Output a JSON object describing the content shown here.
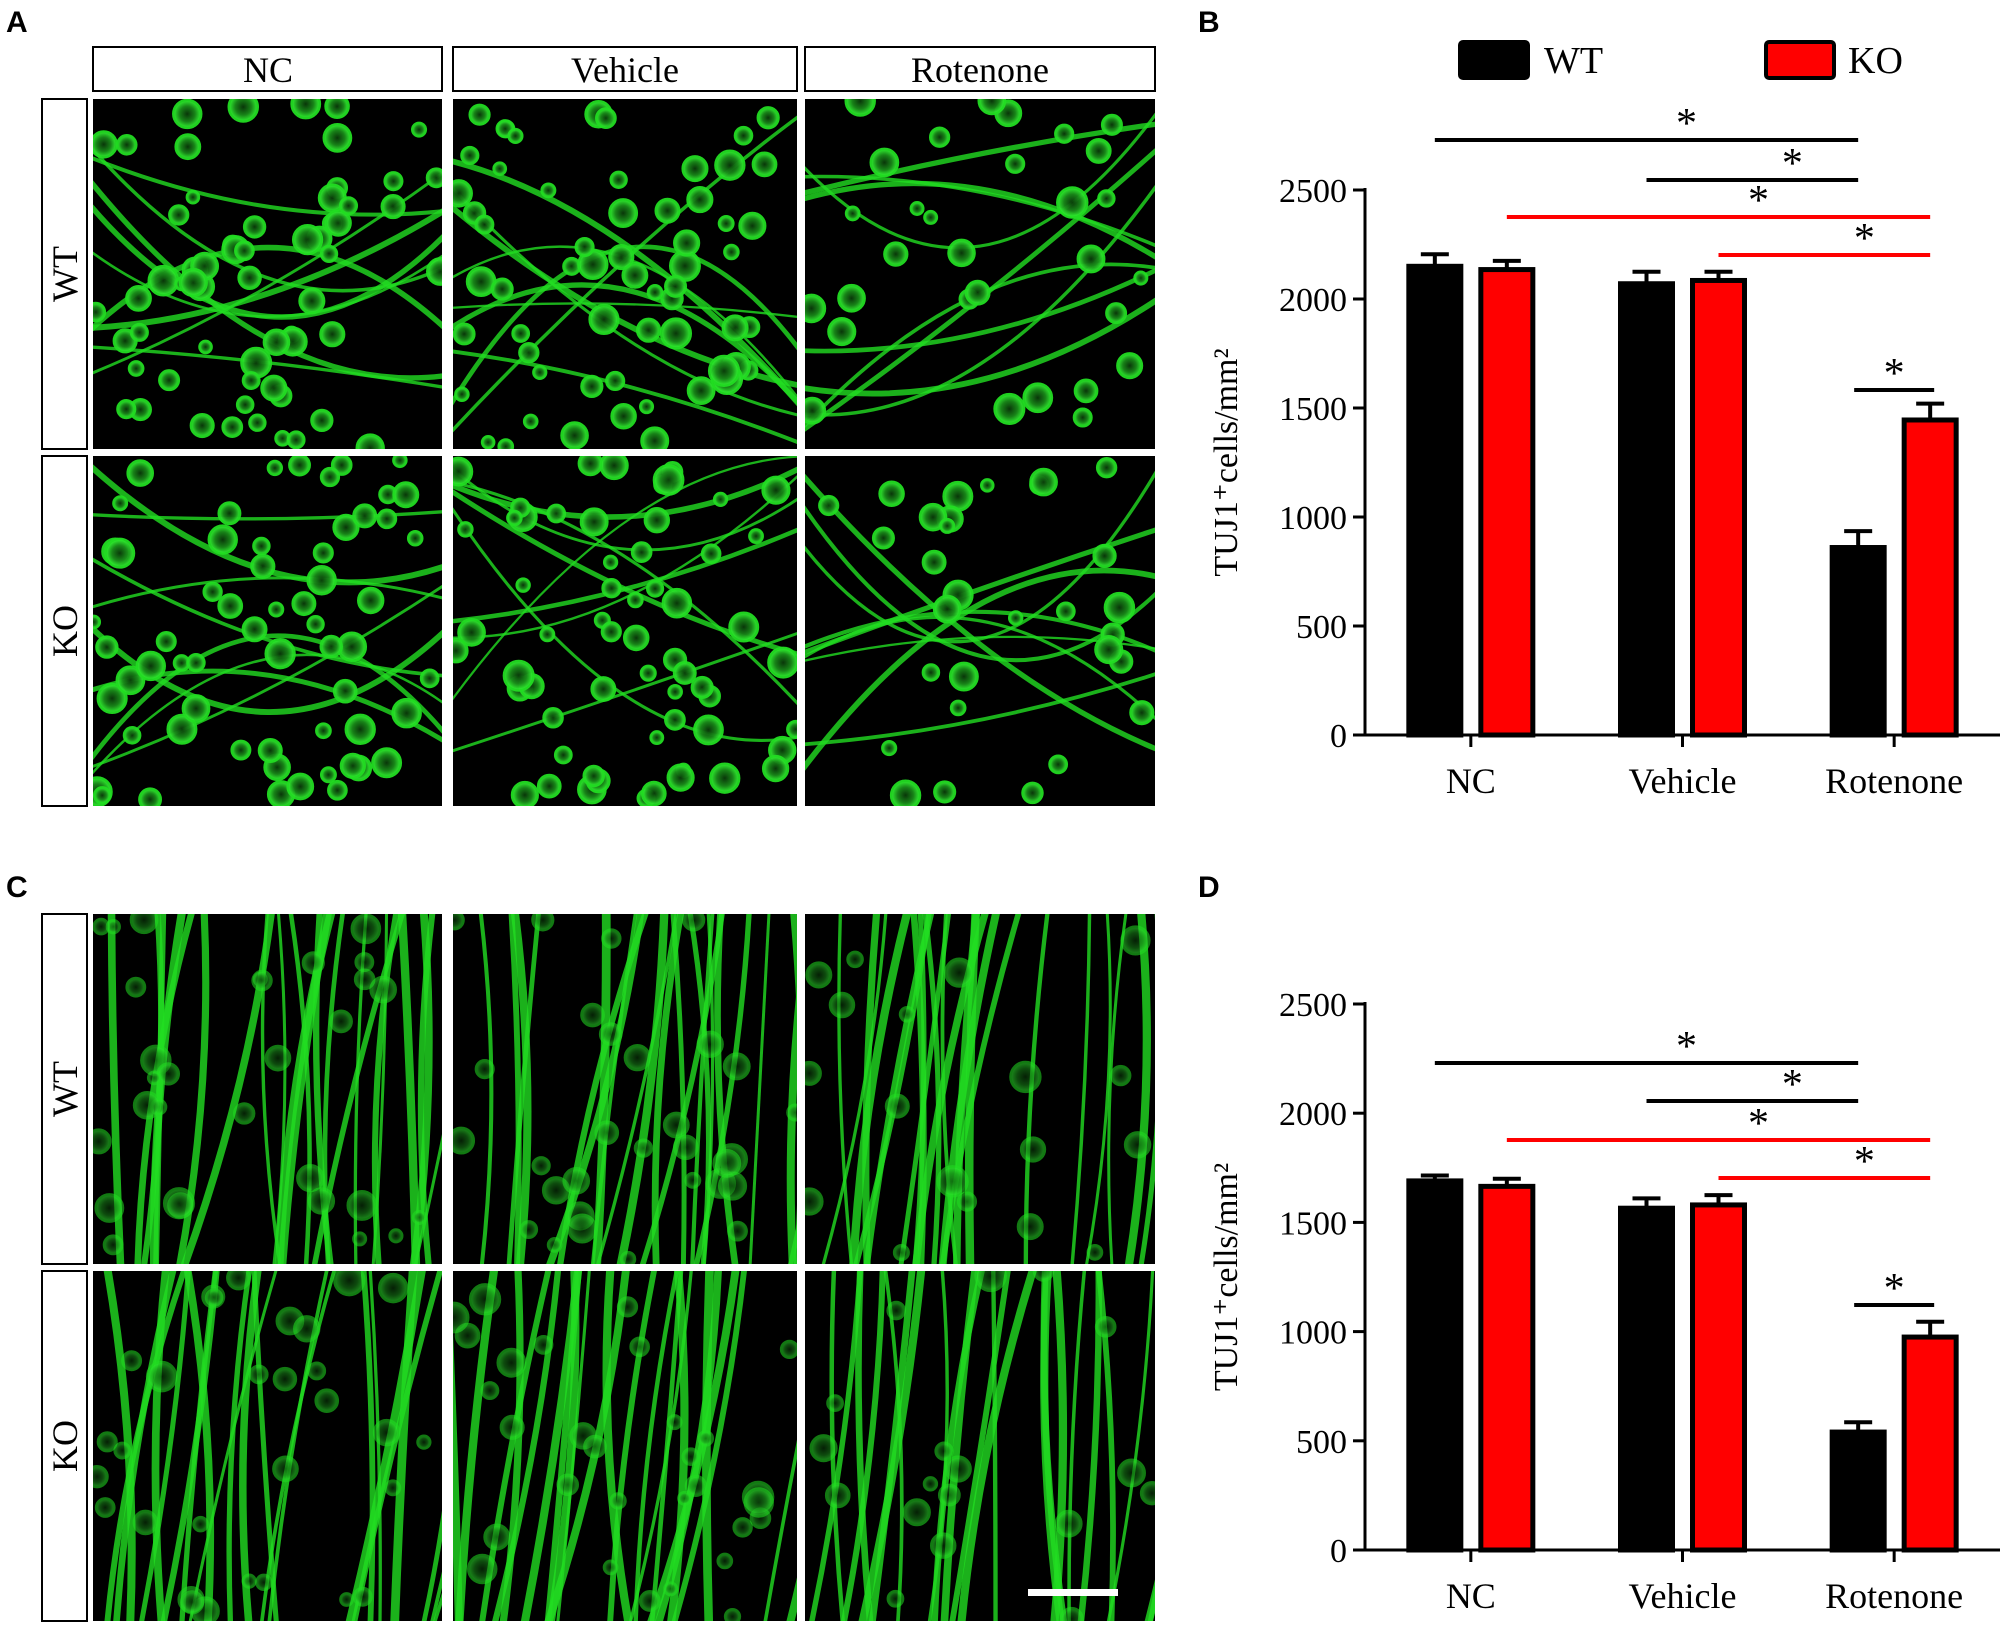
{
  "panels": {
    "A": "A",
    "B": "B",
    "C": "C",
    "D": "D"
  },
  "micrograph": {
    "columns": [
      "NC",
      "Vehicle",
      "Rotenone"
    ],
    "rows": [
      "WT",
      "KO"
    ],
    "stain_color": "#22dd22",
    "background_color": "#000000"
  },
  "legend": {
    "wt": "WT",
    "ko": "KO"
  },
  "colors": {
    "wt": "#000000",
    "ko": "#ff0000",
    "sig_wt_line": "#000000",
    "sig_ko_line": "#ff0000"
  },
  "chart_data": [
    {
      "panel": "B",
      "type": "bar",
      "ylabel": "TUJ1⁺cells/mm²",
      "categories": [
        "NC",
        "Vehicle",
        "Rotenone"
      ],
      "ylim": [
        0,
        2500
      ],
      "yticks": [
        0,
        500,
        1000,
        1500,
        2000,
        2500
      ],
      "series": [
        {
          "name": "WT",
          "values": [
            2150,
            2070,
            860
          ],
          "errors": [
            55,
            55,
            75
          ]
        },
        {
          "name": "KO",
          "values": [
            2135,
            2085,
            1445
          ],
          "errors": [
            40,
            40,
            75
          ]
        }
      ],
      "significance": [
        {
          "label": "*",
          "from": "NC/WT",
          "to": "Rotenone/WT",
          "color": "black"
        },
        {
          "label": "*",
          "from": "Vehicle/WT",
          "to": "Rotenone/WT",
          "color": "black"
        },
        {
          "label": "*",
          "from": "NC/KO",
          "to": "Rotenone/KO",
          "color": "red"
        },
        {
          "label": "*",
          "from": "Vehicle/KO",
          "to": "Rotenone/KO",
          "color": "red"
        },
        {
          "label": "*",
          "from": "Rotenone/WT",
          "to": "Rotenone/KO",
          "color": "black"
        }
      ]
    },
    {
      "panel": "D",
      "type": "bar",
      "ylabel": "TUJ1⁺cells/mm²",
      "categories": [
        "NC",
        "Vehicle",
        "Rotenone"
      ],
      "ylim": [
        0,
        2500
      ],
      "yticks": [
        0,
        500,
        1000,
        1500,
        2000,
        2500
      ],
      "series": [
        {
          "name": "WT",
          "values": [
            1690,
            1565,
            540
          ],
          "errors": [
            25,
            45,
            45
          ]
        },
        {
          "name": "KO",
          "values": [
            1665,
            1580,
            975
          ],
          "errors": [
            35,
            45,
            70
          ]
        }
      ],
      "significance": [
        {
          "label": "*",
          "from": "NC/WT",
          "to": "Rotenone/WT",
          "color": "black"
        },
        {
          "label": "*",
          "from": "Vehicle/WT",
          "to": "Rotenone/WT",
          "color": "black"
        },
        {
          "label": "*",
          "from": "NC/KO",
          "to": "Rotenone/KO",
          "color": "red"
        },
        {
          "label": "*",
          "from": "Vehicle/KO",
          "to": "Rotenone/KO",
          "color": "red"
        },
        {
          "label": "*",
          "from": "Rotenone/WT",
          "to": "Rotenone/KO",
          "color": "black"
        }
      ]
    }
  ]
}
